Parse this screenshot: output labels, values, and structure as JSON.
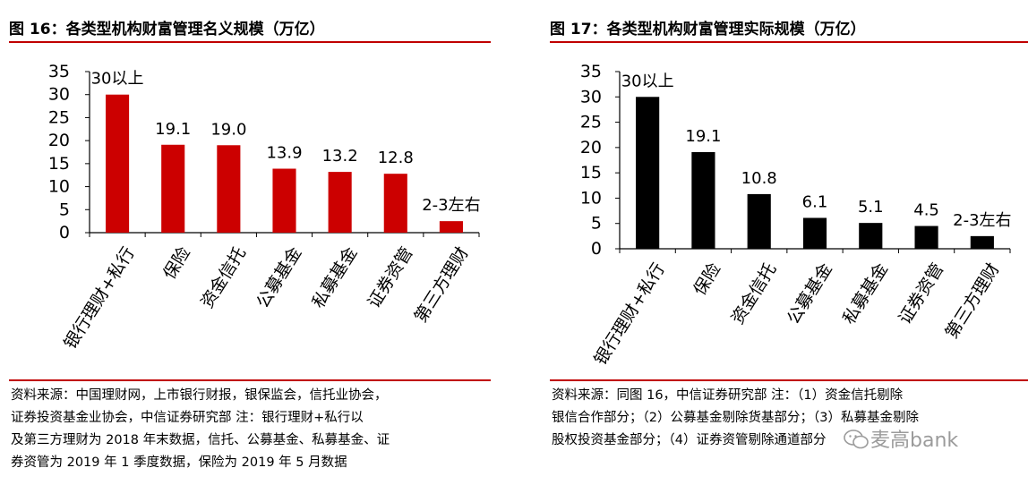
{
  "chart_data": [
    {
      "type": "bar",
      "title": "图 16：各类型机构财富管理名义规模（万亿）",
      "categories": [
        "银行理财+私行",
        "保险",
        "资金信托",
        "公募基金",
        "私募基金",
        "证券资管",
        "第三方理财"
      ],
      "values": [
        30,
        19.1,
        19.0,
        13.9,
        13.2,
        12.8,
        2.5
      ],
      "data_labels": [
        "30以上",
        "19.1",
        "19.0",
        "13.9",
        "13.2",
        "12.8",
        "2-3左右"
      ],
      "yticks": [
        "0",
        "5",
        "10",
        "15",
        "20",
        "25",
        "30",
        "35"
      ],
      "ylim": [
        0,
        35
      ],
      "bar_color": "#cc0000",
      "grid": false
    },
    {
      "type": "bar",
      "title": "图 17：各类型机构财富管理实际规模（万亿）",
      "categories": [
        "银行理财+私行",
        "保险",
        "资金信托",
        "公募基金",
        "私募基金",
        "证券资管",
        "第三方理财"
      ],
      "values": [
        30,
        19.1,
        10.8,
        6.1,
        5.1,
        4.5,
        2.5
      ],
      "data_labels": [
        "30以上",
        "19.1",
        "10.8",
        "6.1",
        "5.1",
        "4.5",
        "2-3左右"
      ],
      "yticks": [
        "0",
        "5",
        "10",
        "15",
        "20",
        "25",
        "30",
        "35"
      ],
      "ylim": [
        0,
        35
      ],
      "bar_color": "#000000",
      "grid": false
    }
  ],
  "notes": {
    "left": "资料来源：中国理财网，上市银行财报，银保监会，信托业协会，\n证券投资基金业协会，中信证券研究部    注：银行理财+私行以\n及第三方理财为 2018 年末数据，信托、公募基金、私募基金、证\n券资管为 2019 年 1 季度数据，保险为 2019 年 5 月数据",
    "right": "资料来源：同图 16，中信证券研究部    注：（1）资金信托剔除\n银信合作部分；（2）公募基金剔除货基部分；（3）私募基金剔除\n股权投资基金部分；（4）证券资管剔除通道部分"
  },
  "watermark": "麦高bank",
  "colors": {
    "accent": "#c00000"
  }
}
